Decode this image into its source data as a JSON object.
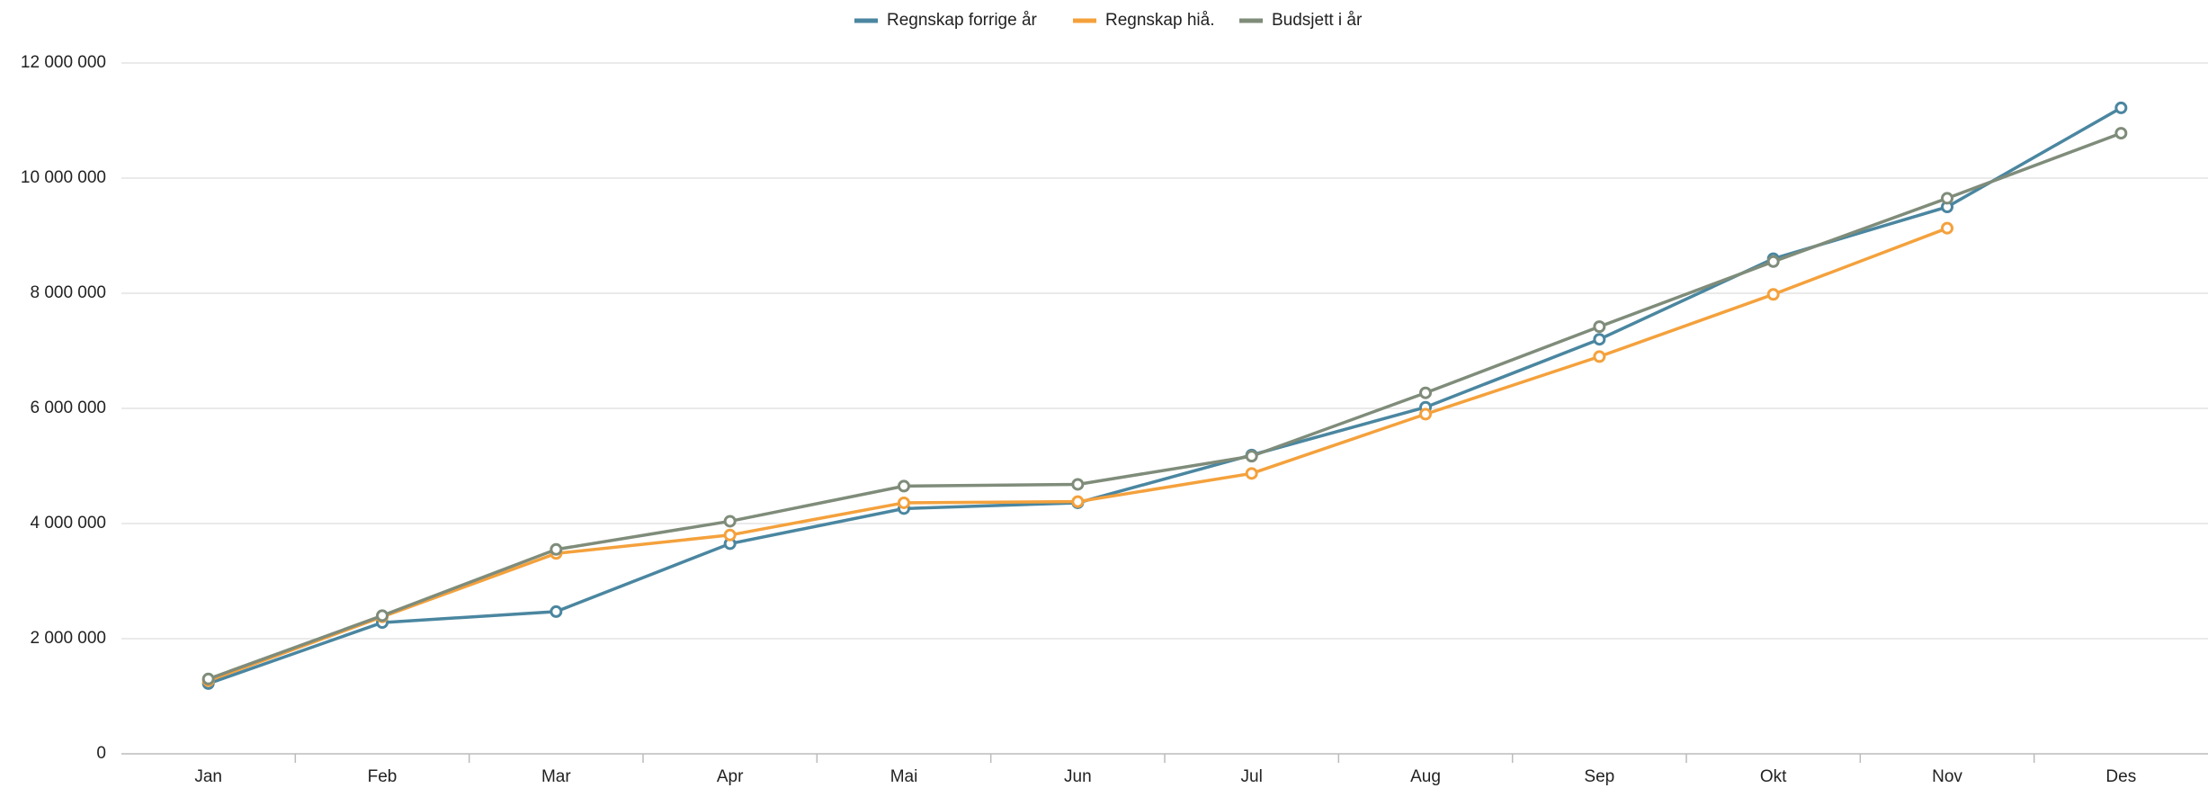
{
  "chart_data": {
    "type": "line",
    "categories": [
      "Jan",
      "Feb",
      "Mar",
      "Apr",
      "Mai",
      "Jun",
      "Jul",
      "Aug",
      "Sep",
      "Okt",
      "Nov",
      "Des"
    ],
    "series": [
      {
        "name": "Regnskap forrige år",
        "color": "#4a86a0",
        "values": [
          1220000,
          2280000,
          2470000,
          3650000,
          4260000,
          4360000,
          5190000,
          6020000,
          7200000,
          8600000,
          9500000,
          11220000
        ]
      },
      {
        "name": "Regnskap hiå.",
        "color": "#f4a13c",
        "values": [
          1270000,
          2380000,
          3480000,
          3800000,
          4360000,
          4380000,
          4870000,
          5900000,
          6900000,
          7980000,
          9130000,
          null
        ]
      },
      {
        "name": "Budsjett i år",
        "color": "#7f8c7a",
        "values": [
          1300000,
          2400000,
          3550000,
          4040000,
          4650000,
          4680000,
          5170000,
          6270000,
          7420000,
          8550000,
          9650000,
          10780000
        ]
      }
    ],
    "ylim": [
      0,
      12000000
    ],
    "yticks": [
      0,
      {
        "value": 2000000,
        "label": "2 000 000"
      },
      {
        "value": 4000000,
        "label": "4 000 000"
      },
      {
        "value": 6000000,
        "label": "6 000 000"
      },
      {
        "value": 8000000,
        "label": "8 000 000"
      },
      {
        "value": 10000000,
        "label": "10 000 000"
      },
      {
        "value": 12000000,
        "label": "12 000 000"
      }
    ],
    "grid": true
  }
}
